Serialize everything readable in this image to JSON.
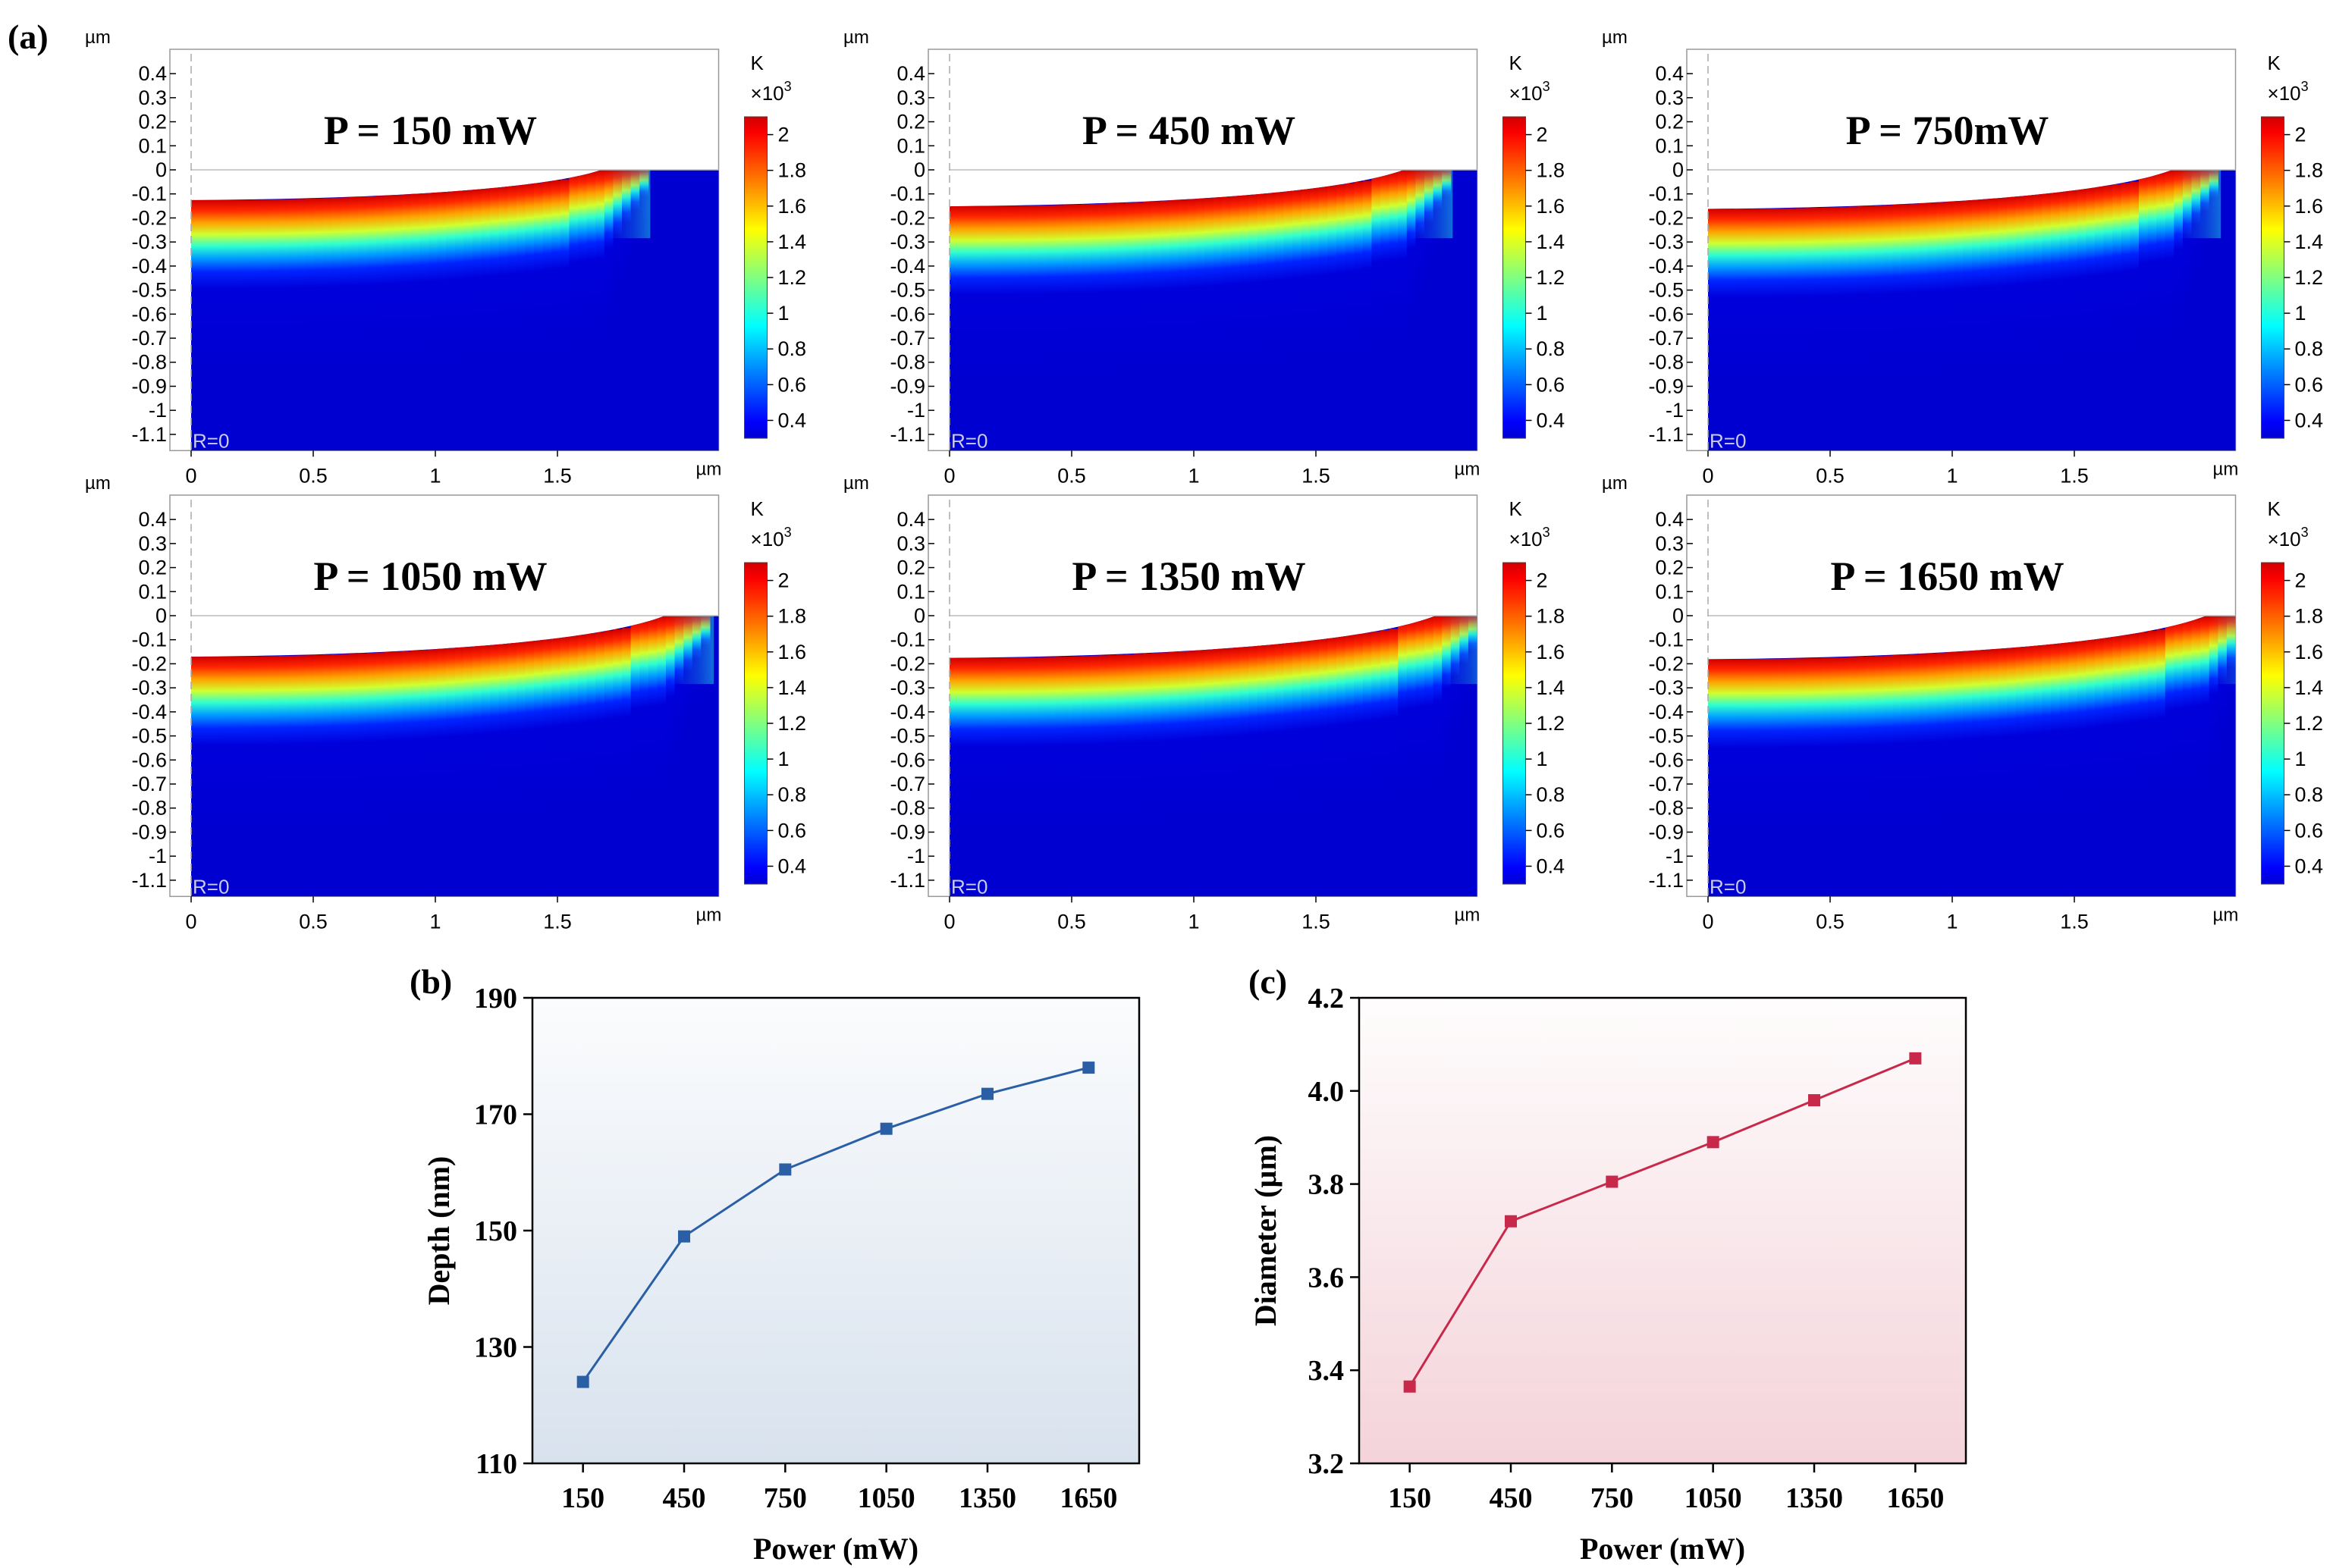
{
  "labels": {
    "a": "(a)",
    "b": "(b)",
    "c": "(c)"
  },
  "heatmaps": {
    "axis_unit": "µm",
    "r_label": "R=0",
    "cb_unit": "K",
    "cb_mult": "×10",
    "cb_exp": "3",
    "cb_ticks": [
      "2",
      "1.8",
      "1.6",
      "1.4",
      "1.2",
      "1",
      "0.8",
      "0.6",
      "0.4"
    ],
    "cb_tick_values": [
      2,
      1.8,
      1.6,
      1.4,
      1.2,
      1,
      0.8,
      0.6,
      0.4
    ],
    "cb_range": [
      0.3,
      2.1
    ],
    "y_ticks": [
      "0.4",
      "0.3",
      "0.2",
      "0.1",
      "0",
      "-0.1",
      "-0.2",
      "-0.3",
      "-0.4",
      "-0.5",
      "-0.6",
      "-0.7",
      "-0.8",
      "-0.9",
      "-1",
      "-1.1"
    ],
    "y_tick_values": [
      0.4,
      0.3,
      0.2,
      0.1,
      0,
      -0.1,
      -0.2,
      -0.3,
      -0.4,
      -0.5,
      -0.6,
      -0.7,
      -0.8,
      -0.9,
      -1,
      -1.1
    ],
    "x_ticks": [
      "0",
      "0.5",
      "1",
      "1.5"
    ],
    "x_tick_values": [
      0,
      0.5,
      1,
      1.5
    ],
    "panels": [
      {
        "title": "P = 150 mW",
        "crater_depth_um": 0.124,
        "crater_radius_um": 1.68
      },
      {
        "title": "P = 450 mW",
        "crater_depth_um": 0.149,
        "crater_radius_um": 1.86
      },
      {
        "title": "P = 750mW",
        "crater_depth_um": 0.16,
        "crater_radius_um": 1.9
      },
      {
        "title": "P = 1050 mW",
        "crater_depth_um": 0.168,
        "crater_radius_um": 1.94
      },
      {
        "title": "P = 1350 mW",
        "crater_depth_um": 0.173,
        "crater_radius_um": 1.99
      },
      {
        "title": "P = 1650 mW",
        "crater_depth_um": 0.178,
        "crater_radius_um": 2.04
      }
    ]
  },
  "chart_data": [
    {
      "type": "line",
      "panel": "(b)",
      "title": "",
      "xlabel": "Power (mW)",
      "ylabel": "Depth (nm)",
      "categories": [
        "150",
        "450",
        "750",
        "1050",
        "1350",
        "1650"
      ],
      "x": [
        150,
        450,
        750,
        1050,
        1350,
        1650
      ],
      "series": [
        {
          "name": "Depth",
          "values": [
            124,
            149,
            160.5,
            167.5,
            173.5,
            178
          ],
          "color": "#2a5fa6"
        }
      ],
      "xlim": [
        0,
        1800
      ],
      "ylim": [
        110,
        190
      ],
      "yticks": [
        110,
        130,
        150,
        170,
        190
      ],
      "ytick_labels": [
        "110",
        "130",
        "150",
        "170",
        "190"
      ],
      "bg_top": "#fbfcfd",
      "bg_bottom": "#d8e2ee"
    },
    {
      "type": "line",
      "panel": "(c)",
      "title": "",
      "xlabel": "Power (mW)",
      "ylabel": "Diameter (µm)",
      "categories": [
        "150",
        "450",
        "750",
        "1050",
        "1350",
        "1650"
      ],
      "x": [
        150,
        450,
        750,
        1050,
        1350,
        1650
      ],
      "series": [
        {
          "name": "Diameter",
          "values": [
            3.365,
            3.72,
            3.805,
            3.89,
            3.98,
            4.07
          ],
          "color": "#c8284a"
        }
      ],
      "xlim": [
        0,
        1800
      ],
      "ylim": [
        3.2,
        4.2
      ],
      "yticks": [
        3.2,
        3.4,
        3.6,
        3.8,
        4.0,
        4.2
      ],
      "ytick_labels": [
        "3.2",
        "3.4",
        "3.6",
        "3.8",
        "4.0",
        "4.2"
      ],
      "bg_top": "#fefdfd",
      "bg_bottom": "#f4d3da"
    }
  ]
}
